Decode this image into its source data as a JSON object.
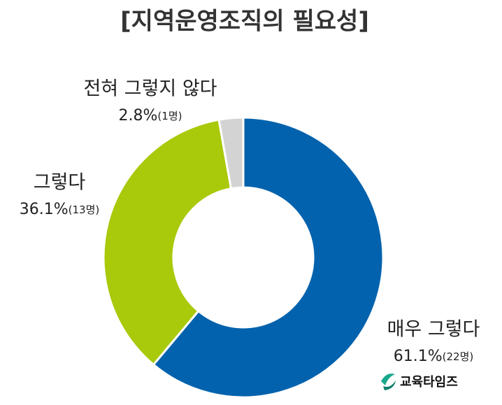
{
  "chart_data": {
    "type": "donut",
    "title": "[지역운영조직의 필요성]",
    "categories": [
      "매우 그렇다",
      "그렇다",
      "전혀 그렇지 않다"
    ],
    "values": [
      61.1,
      36.1,
      2.8
    ],
    "value_labels": [
      "61.1%",
      "36.1%",
      "2.8%"
    ],
    "count_labels": [
      "(22명)",
      "(13명)",
      "(1명)"
    ],
    "colors": [
      "#0262ad",
      "#a9c90b",
      "#d3d3d3"
    ],
    "source": "교육타임즈"
  }
}
